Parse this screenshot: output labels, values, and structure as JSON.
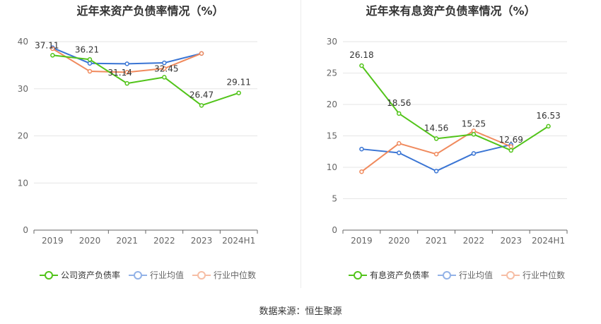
{
  "source_text": "数据来源：恒生聚源",
  "chart_data": [
    {
      "type": "line",
      "title": "近年来资产负债率情况（%）",
      "categories": [
        "2019",
        "2020",
        "2021",
        "2022",
        "2023",
        "2024H1"
      ],
      "ylim": [
        0,
        40
      ],
      "yticks": [
        0,
        10,
        20,
        30,
        40
      ],
      "grid": true,
      "legend_position": "bottom",
      "series": [
        {
          "name": "公司资产负债率",
          "color": "#52c41a",
          "labeled": true,
          "values": [
            37.11,
            36.21,
            31.14,
            32.45,
            26.47,
            29.11
          ],
          "labels": [
            "37.11",
            "36.21",
            "31.14",
            "32.45",
            "26.47",
            "29.11"
          ]
        },
        {
          "name": "行业均值",
          "color": "#3a75d4",
          "labeled": false,
          "values": [
            38.7,
            35.4,
            35.3,
            35.5,
            37.5,
            null
          ]
        },
        {
          "name": "行业中位数",
          "color": "#f08a5d",
          "labeled": false,
          "values": [
            38.5,
            33.7,
            33.5,
            34.3,
            37.5,
            null
          ]
        }
      ]
    },
    {
      "type": "line",
      "title": "近年来有息资产负债率情况（%）",
      "categories": [
        "2019",
        "2020",
        "2021",
        "2022",
        "2023",
        "2024H1"
      ],
      "ylim": [
        0,
        30
      ],
      "yticks": [
        0,
        5,
        10,
        15,
        20,
        25,
        30
      ],
      "grid": true,
      "legend_position": "bottom",
      "series": [
        {
          "name": "有息资产负债率",
          "color": "#52c41a",
          "labeled": true,
          "values": [
            26.18,
            18.56,
            14.56,
            15.25,
            12.69,
            16.53
          ],
          "labels": [
            "26.18",
            "18.56",
            "14.56",
            "15.25",
            "12.69",
            "16.53"
          ]
        },
        {
          "name": "行业均值",
          "color": "#3a75d4",
          "labeled": false,
          "values": [
            12.9,
            12.3,
            9.4,
            12.2,
            13.6,
            null
          ]
        },
        {
          "name": "行业中位数",
          "color": "#f08a5d",
          "labeled": false,
          "values": [
            9.3,
            13.8,
            12.1,
            15.8,
            13.3,
            null
          ]
        }
      ]
    }
  ]
}
